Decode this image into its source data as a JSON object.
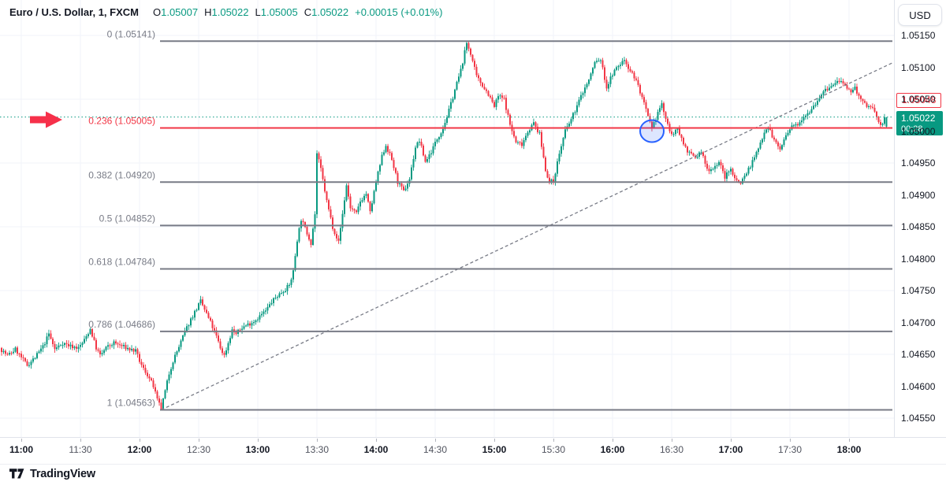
{
  "header": {
    "symbol": "Euro / U.S. Dollar, 1, FXCM",
    "open_label": "O",
    "open": "1.05007",
    "high_label": "H",
    "high": "1.05022",
    "low_label": "L",
    "low": "1.05005",
    "close_label": "C",
    "close": "1.05022",
    "change": "+0.00015 (+0.01%)"
  },
  "currency_button": {
    "label": "USD"
  },
  "footer": {
    "logo_text": "TradingView"
  },
  "price_axis": {
    "scale_labels": [
      "1.05150",
      "1.05100",
      "1.05050",
      "1.05000",
      "1.04950",
      "1.04900",
      "1.04850",
      "1.04800",
      "1.04750",
      "1.04700",
      "1.04650",
      "1.04600",
      "1.04550"
    ],
    "alert_price_box": "1.05048",
    "last_price_box": {
      "price": "1.05022",
      "countdown": "00:28"
    }
  },
  "time_axis": {
    "ticks": [
      {
        "label": "11:00",
        "hour": true
      },
      {
        "label": "11:30",
        "hour": false
      },
      {
        "label": "12:00",
        "hour": true
      },
      {
        "label": "12:30",
        "hour": false
      },
      {
        "label": "13:00",
        "hour": true
      },
      {
        "label": "13:30",
        "hour": false
      },
      {
        "label": "14:00",
        "hour": true
      },
      {
        "label": "14:30",
        "hour": false
      },
      {
        "label": "15:00",
        "hour": true
      },
      {
        "label": "15:30",
        "hour": false
      },
      {
        "label": "16:00",
        "hour": true
      },
      {
        "label": "16:30",
        "hour": false
      },
      {
        "label": "17:00",
        "hour": true
      },
      {
        "label": "17:30",
        "hour": false
      },
      {
        "label": "18:00",
        "hour": true
      }
    ]
  },
  "colors": {
    "up": "#089981",
    "down": "#f23645",
    "fib_gray": "#787b86",
    "fib_red": "#f23645",
    "arrow_red": "#f6304a",
    "circle_blue": "#2962ff",
    "grid": "#f0f3fa",
    "text_dark": "#131722",
    "text_gray": "#787b86",
    "axis_border": "#e0e3eb",
    "current_price_line": "#089981"
  },
  "chart_data": {
    "type": "candlestick",
    "title": "Euro / U.S. Dollar, 1, FXCM",
    "interval_minutes": 1,
    "visible_price_range": [
      1.0452,
      1.0521
    ],
    "visible_time_range": [
      "10:50",
      "18:20"
    ],
    "grid": true,
    "session_high": 1.05141,
    "session_low": 1.04563,
    "current_price": 1.05022,
    "last_candle": {
      "open": 1.05007,
      "high": 1.05022,
      "low": 1.05005,
      "close": 1.05022
    },
    "fib_levels": [
      {
        "level": "0",
        "price": 1.05141,
        "label": "0 (1.05141)",
        "red": false
      },
      {
        "level": "0.236",
        "price": 1.05005,
        "label": "0.236 (1.05005)",
        "red": true
      },
      {
        "level": "0.382",
        "price": 1.0492,
        "label": "0.382 (1.04920)",
        "red": false
      },
      {
        "level": "0.5",
        "price": 1.04852,
        "label": "0.5 (1.04852)",
        "red": false
      },
      {
        "level": "0.618",
        "price": 1.04784,
        "label": "0.618 (1.04784)",
        "red": false
      },
      {
        "level": "0.786",
        "price": 1.04686,
        "label": "0.786 (1.04686)",
        "red": false
      },
      {
        "level": "1",
        "price": 1.04563,
        "label": "1 (1.04563)",
        "red": false
      }
    ],
    "trendline": {
      "from": {
        "minute": 71,
        "price": 1.04563
      },
      "to": {
        "minute": 442,
        "price": 1.05107
      },
      "dashed": true
    },
    "annotations": {
      "arrow": {
        "points_at_level": "0.236 (1.05005)",
        "price": 1.05005
      },
      "circle": {
        "minute": 320,
        "time": "16:20",
        "price": 1.05005
      }
    },
    "waypoints_note": "minute offset from 11:00 -> price anchors of the 1-min candle path",
    "waypoints": [
      [
        -10,
        1.0466
      ],
      [
        -6,
        1.04648
      ],
      [
        -2,
        1.04658
      ],
      [
        1,
        1.04645
      ],
      [
        4,
        1.04633
      ],
      [
        8,
        1.04645
      ],
      [
        12,
        1.04662
      ],
      [
        15,
        1.04682
      ],
      [
        18,
        1.04658
      ],
      [
        22,
        1.04668
      ],
      [
        26,
        1.04663
      ],
      [
        30,
        1.0466
      ],
      [
        33,
        1.04672
      ],
      [
        36,
        1.0469
      ],
      [
        39,
        1.0466
      ],
      [
        41,
        1.04648
      ],
      [
        44,
        1.0466
      ],
      [
        48,
        1.04668
      ],
      [
        52,
        1.04663
      ],
      [
        56,
        1.04658
      ],
      [
        59,
        1.04655
      ],
      [
        62,
        1.04632
      ],
      [
        65,
        1.04618
      ],
      [
        68,
        1.046
      ],
      [
        70,
        1.04578
      ],
      [
        72,
        1.04565
      ],
      [
        74,
        1.04592
      ],
      [
        76,
        1.0462
      ],
      [
        78,
        1.0464
      ],
      [
        81,
        1.04662
      ],
      [
        84,
        1.04685
      ],
      [
        87,
        1.04705
      ],
      [
        90,
        1.04722
      ],
      [
        92,
        1.04733
      ],
      [
        94,
        1.0472
      ],
      [
        97,
        1.047
      ],
      [
        100,
        1.04678
      ],
      [
        102,
        1.0466
      ],
      [
        104,
        1.04648
      ],
      [
        106,
        1.04668
      ],
      [
        108,
        1.04688
      ],
      [
        110,
        1.04682
      ],
      [
        113,
        1.04692
      ],
      [
        116,
        1.04697
      ],
      [
        119,
        1.04702
      ],
      [
        122,
        1.0471
      ],
      [
        125,
        1.04718
      ],
      [
        128,
        1.04732
      ],
      [
        131,
        1.04742
      ],
      [
        134,
        1.0475
      ],
      [
        137,
        1.04758
      ],
      [
        139,
        1.0478
      ],
      [
        141,
        1.0483
      ],
      [
        143,
        1.04862
      ],
      [
        146,
        1.0484
      ],
      [
        148,
        1.04825
      ],
      [
        150,
        1.0487
      ],
      [
        151,
        1.04965
      ],
      [
        153,
        1.0494
      ],
      [
        156,
        1.0489
      ],
      [
        159,
        1.0485
      ],
      [
        162,
        1.04826
      ],
      [
        164,
        1.0487
      ],
      [
        166,
        1.04915
      ],
      [
        168,
        1.0488
      ],
      [
        171,
        1.0487
      ],
      [
        173,
        1.0489
      ],
      [
        176,
        1.04902
      ],
      [
        178,
        1.04872
      ],
      [
        181,
        1.0492
      ],
      [
        184,
        1.0496
      ],
      [
        186,
        1.04978
      ],
      [
        189,
        1.04955
      ],
      [
        192,
        1.0492
      ],
      [
        195,
        1.04905
      ],
      [
        198,
        1.04925
      ],
      [
        201,
        1.04975
      ],
      [
        203,
        1.04985
      ],
      [
        206,
        1.04952
      ],
      [
        209,
        1.04968
      ],
      [
        212,
        1.04988
      ],
      [
        215,
        1.05005
      ],
      [
        218,
        1.05032
      ],
      [
        221,
        1.05065
      ],
      [
        224,
        1.05095
      ],
      [
        227,
        1.05138
      ],
      [
        229,
        1.05122
      ],
      [
        232,
        1.05085
      ],
      [
        235,
        1.05072
      ],
      [
        238,
        1.05058
      ],
      [
        241,
        1.05038
      ],
      [
        243,
        1.05055
      ],
      [
        246,
        1.0505
      ],
      [
        249,
        1.0501
      ],
      [
        252,
        1.04982
      ],
      [
        255,
        1.0498
      ],
      [
        258,
        1.05
      ],
      [
        261,
        1.05012
      ],
      [
        264,
        1.04995
      ],
      [
        267,
        1.0494
      ],
      [
        269,
        1.0492
      ],
      [
        271,
        1.04922
      ],
      [
        274,
        1.04965
      ],
      [
        277,
        1.05
      ],
      [
        280,
        1.05018
      ],
      [
        283,
        1.0504
      ],
      [
        286,
        1.05062
      ],
      [
        289,
        1.0508
      ],
      [
        292,
        1.05108
      ],
      [
        295,
        1.05112
      ],
      [
        298,
        1.05068
      ],
      [
        301,
        1.0509
      ],
      [
        304,
        1.05102
      ],
      [
        307,
        1.05112
      ],
      [
        310,
        1.05095
      ],
      [
        313,
        1.0508
      ],
      [
        316,
        1.05052
      ],
      [
        319,
        1.05022
      ],
      [
        321,
        1.05002
      ],
      [
        324,
        1.0503
      ],
      [
        326,
        1.05042
      ],
      [
        329,
        1.05008
      ],
      [
        332,
        1.04992
      ],
      [
        334,
        1.05006
      ],
      [
        337,
        1.0498
      ],
      [
        340,
        1.04965
      ],
      [
        343,
        1.04958
      ],
      [
        346,
        1.04968
      ],
      [
        349,
        1.0494
      ],
      [
        352,
        1.04942
      ],
      [
        355,
        1.04952
      ],
      [
        358,
        1.04928
      ],
      [
        361,
        1.0494
      ],
      [
        364,
        1.04922
      ],
      [
        366,
        1.0492
      ],
      [
        369,
        1.04935
      ],
      [
        372,
        1.04952
      ],
      [
        375,
        1.04972
      ],
      [
        378,
        1.05
      ],
      [
        380,
        1.05008
      ],
      [
        383,
        1.04985
      ],
      [
        386,
        1.04972
      ],
      [
        389,
        1.04992
      ],
      [
        392,
        1.05006
      ],
      [
        395,
        1.05012
      ],
      [
        398,
        1.05024
      ],
      [
        401,
        1.05032
      ],
      [
        404,
        1.05044
      ],
      [
        407,
        1.05058
      ],
      [
        410,
        1.05066
      ],
      [
        413,
        1.05072
      ],
      [
        416,
        1.0508
      ],
      [
        418,
        1.05072
      ],
      [
        421,
        1.05062
      ],
      [
        424,
        1.05068
      ],
      [
        427,
        1.05048
      ],
      [
        430,
        1.0504
      ],
      [
        433,
        1.05036
      ],
      [
        435,
        1.05022
      ],
      [
        437,
        1.05008
      ],
      [
        439,
        1.0502
      ]
    ]
  }
}
